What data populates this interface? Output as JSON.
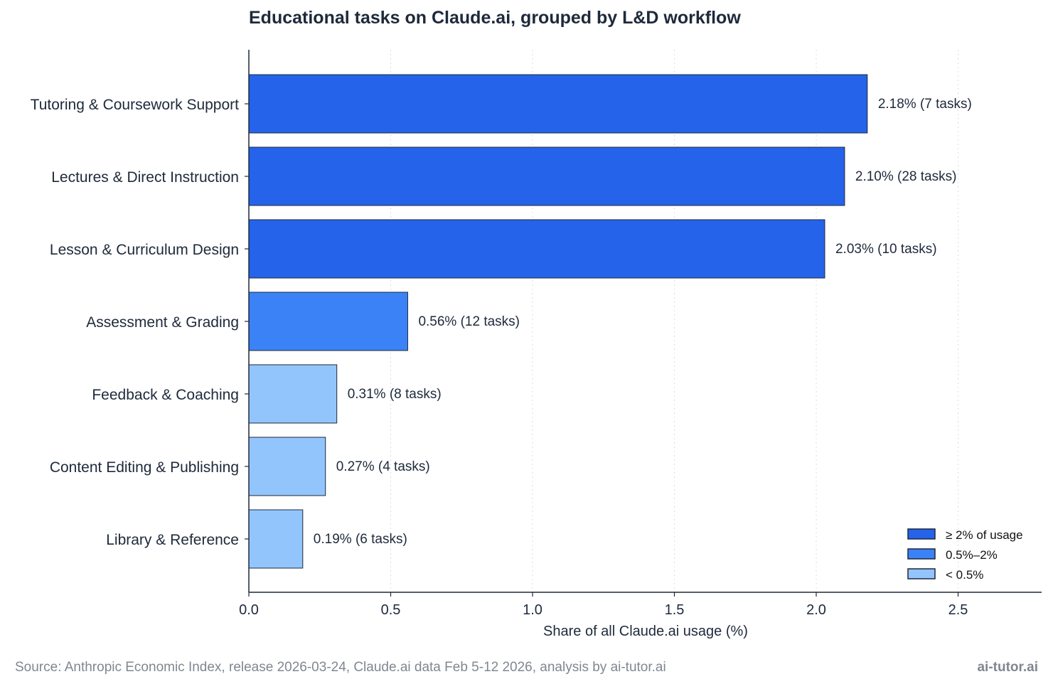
{
  "chart_data": {
    "type": "bar",
    "orientation": "horizontal",
    "title": "Educational tasks on Claude.ai, grouped by L&D workflow",
    "xlabel": "Share of all Claude.ai usage (%)",
    "ylabel": "",
    "xlim": [
      0,
      2.8
    ],
    "xticks": [
      0.0,
      0.5,
      1.0,
      1.5,
      2.0,
      2.5
    ],
    "xtick_labels": [
      "0.0",
      "0.5",
      "1.0",
      "1.5",
      "2.0",
      "2.5"
    ],
    "grid": "vertical dotted",
    "categories": [
      "Tutoring & Coursework Support",
      "Lectures & Direct Instruction",
      "Lesson & Curriculum Design",
      "Assessment & Grading",
      "Feedback & Coaching",
      "Content Editing & Publishing",
      "Library & Reference"
    ],
    "values": [
      2.18,
      2.1,
      2.03,
      0.56,
      0.31,
      0.27,
      0.19
    ],
    "value_labels": [
      "2.18%  (7 tasks)",
      "2.10%  (28 tasks)",
      "2.03%  (10 tasks)",
      "0.56%  (12 tasks)",
      "0.31%  (8 tasks)",
      "0.27%  (4 tasks)",
      "0.19%  (6 tasks)"
    ],
    "tiers": [
      "high",
      "high",
      "high",
      "mid",
      "low",
      "low",
      "low"
    ],
    "legend": {
      "placement": "bottom-right",
      "entries": [
        {
          "key": "high",
          "label": "≥ 2% of usage",
          "color": "#2563eb"
        },
        {
          "key": "mid",
          "label": "0.5%–2%",
          "color": "#3b82f6"
        },
        {
          "key": "low",
          "label": "< 0.5%",
          "color": "#93c5fd"
        }
      ]
    }
  },
  "footer": {
    "source": "Source: Anthropic Economic Index, release 2026-03-24, Claude.ai data Feb 5-12 2026, analysis by ai-tutor.ai",
    "brand": "ai-tutor.ai"
  },
  "colors": {
    "high": "#2563eb",
    "mid": "#3b82f6",
    "low": "#93c5fd",
    "edge": "#1e293b",
    "grid": "#d9dde3",
    "text": "#1e293b",
    "muted": "#808791"
  }
}
